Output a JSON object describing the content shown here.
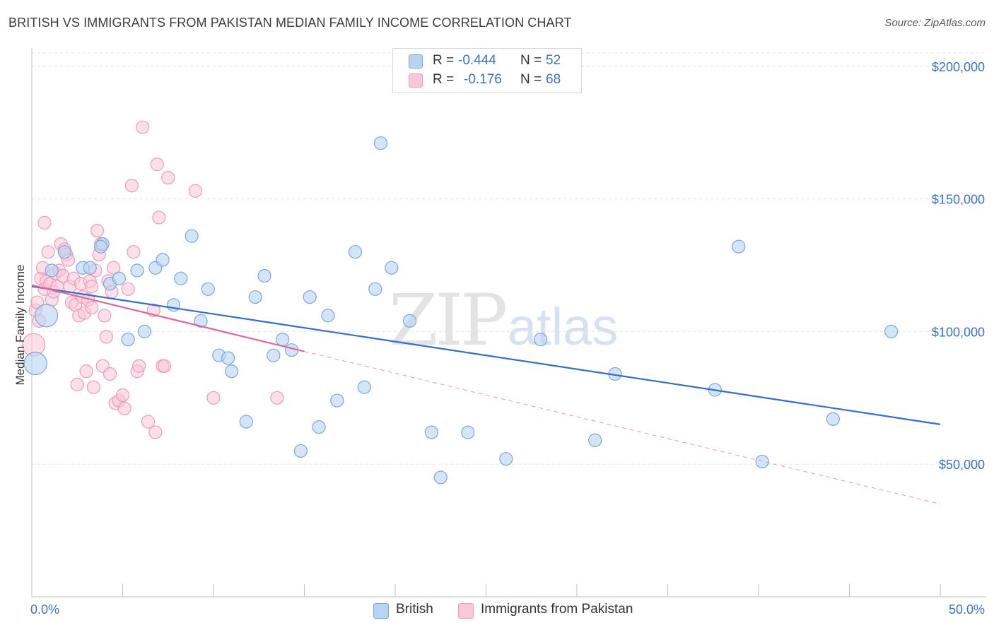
{
  "title": "BRITISH VS IMMIGRANTS FROM PAKISTAN MEDIAN FAMILY INCOME CORRELATION CHART",
  "source": "Source: ZipAtlas.com",
  "watermark": {
    "zip": "ZIP",
    "atlas": "atlas"
  },
  "legend": {
    "british": {
      "r_label": "R =",
      "r_value": "-0.444",
      "n_label": "N =",
      "n_value": "52"
    },
    "pakistan": {
      "r_label": "R =",
      "r_value": "-0.176",
      "n_label": "N =",
      "n_value": "68"
    }
  },
  "bottom_legend": {
    "british": "British",
    "pakistan": "Immigrants from Pakistan"
  },
  "colors": {
    "british_fill": "#b9d3f3",
    "british_stroke": "#7aa6df",
    "british_line": "#2f6fd0",
    "pakistan_fill": "#f9c7d7",
    "pakistan_stroke": "#ee9bb6",
    "pakistan_line": "#e0699a",
    "tick_text": "#3a72c8"
  },
  "chart_data": {
    "type": "scatter",
    "title": "BRITISH VS IMMIGRANTS FROM PAKISTAN MEDIAN FAMILY INCOME CORRELATION CHART",
    "xlabel": "",
    "ylabel": "Median Family Income",
    "xlim": [
      0,
      50
    ],
    "ylim": [
      0,
      205000
    ],
    "x_tick_labels": [
      "0.0%",
      "50.0%"
    ],
    "y_ticks": [
      50000,
      100000,
      150000,
      200000
    ],
    "y_tick_labels": [
      "$50,000",
      "$100,000",
      "$150,000",
      "$200,000"
    ],
    "grid": true,
    "legend_position": "top-center",
    "series": [
      {
        "name": "British",
        "r": -0.444,
        "n": 52,
        "trend": {
          "x": [
            0,
            50
          ],
          "y": [
            117000,
            65000
          ]
        },
        "points": [
          [
            0.2,
            88000,
            "large"
          ],
          [
            0.8,
            106000,
            "large"
          ],
          [
            1.8,
            130000
          ],
          [
            1.1,
            123000
          ],
          [
            2.8,
            124000
          ],
          [
            3.9,
            133000
          ],
          [
            3.2,
            124000
          ],
          [
            3.8,
            132000
          ],
          [
            4.3,
            118000
          ],
          [
            4.8,
            120000
          ],
          [
            5.3,
            97000
          ],
          [
            5.8,
            123000
          ],
          [
            6.2,
            100000
          ],
          [
            6.8,
            124000
          ],
          [
            7.2,
            127000
          ],
          [
            7.8,
            110000
          ],
          [
            8.2,
            120000
          ],
          [
            8.8,
            136000
          ],
          [
            9.3,
            104000
          ],
          [
            9.7,
            116000
          ],
          [
            10.3,
            91000
          ],
          [
            10.8,
            90000
          ],
          [
            11.0,
            85000
          ],
          [
            11.8,
            66000
          ],
          [
            12.3,
            113000
          ],
          [
            12.8,
            121000
          ],
          [
            13.3,
            91000
          ],
          [
            13.8,
            97000
          ],
          [
            14.3,
            93000
          ],
          [
            14.8,
            55000
          ],
          [
            15.3,
            113000
          ],
          [
            15.8,
            64000
          ],
          [
            16.3,
            106000
          ],
          [
            16.8,
            74000
          ],
          [
            17.8,
            130000
          ],
          [
            18.3,
            79000
          ],
          [
            18.9,
            116000
          ],
          [
            19.2,
            171000
          ],
          [
            19.8,
            124000
          ],
          [
            20.8,
            104000
          ],
          [
            22.0,
            62000
          ],
          [
            22.5,
            45000
          ],
          [
            24.0,
            62000
          ],
          [
            26.1,
            52000
          ],
          [
            28.0,
            97000
          ],
          [
            31.0,
            59000
          ],
          [
            32.1,
            84000
          ],
          [
            37.6,
            78000
          ],
          [
            38.9,
            132000
          ],
          [
            40.2,
            51000
          ],
          [
            44.1,
            67000
          ],
          [
            47.3,
            100000
          ]
        ]
      },
      {
        "name": "Immigrants from Pakistan",
        "r": -0.176,
        "n": 68,
        "trend": {
          "x": [
            0,
            15
          ],
          "y": [
            117500,
            92500
          ]
        },
        "trend_extended": {
          "x": [
            15,
            50
          ],
          "y": [
            92500,
            35000
          ]
        },
        "points": [
          [
            0.1,
            95000,
            "large"
          ],
          [
            0.2,
            108000
          ],
          [
            0.3,
            111000
          ],
          [
            0.4,
            104000
          ],
          [
            0.5,
            120000
          ],
          [
            0.6,
            124000
          ],
          [
            0.7,
            116000
          ],
          [
            0.7,
            141000
          ],
          [
            0.8,
            119000
          ],
          [
            0.9,
            130000
          ],
          [
            1.0,
            118000
          ],
          [
            1.1,
            112000
          ],
          [
            1.2,
            115000
          ],
          [
            1.3,
            122000
          ],
          [
            1.4,
            117000
          ],
          [
            1.5,
            123000
          ],
          [
            1.6,
            133000
          ],
          [
            1.7,
            121000
          ],
          [
            1.8,
            131000
          ],
          [
            1.9,
            129000
          ],
          [
            2.0,
            127000
          ],
          [
            2.1,
            117000
          ],
          [
            2.2,
            111000
          ],
          [
            2.3,
            120000
          ],
          [
            2.4,
            110000
          ],
          [
            2.5,
            80000
          ],
          [
            2.6,
            106000
          ],
          [
            2.7,
            118000
          ],
          [
            2.8,
            113000
          ],
          [
            2.9,
            107000
          ],
          [
            3.0,
            85000
          ],
          [
            3.1,
            112000
          ],
          [
            3.2,
            119000
          ],
          [
            3.3,
            109000
          ],
          [
            3.4,
            79000
          ],
          [
            3.5,
            123000
          ],
          [
            3.6,
            138000
          ],
          [
            3.7,
            129000
          ],
          [
            3.8,
            133000
          ],
          [
            3.9,
            87000
          ],
          [
            4.0,
            106000
          ],
          [
            4.1,
            98000
          ],
          [
            4.2,
            119000
          ],
          [
            4.3,
            84000
          ],
          [
            4.4,
            115000
          ],
          [
            4.6,
            73000
          ],
          [
            4.8,
            74000
          ],
          [
            5.1,
            71000
          ],
          [
            5.0,
            76000
          ],
          [
            5.5,
            155000
          ],
          [
            5.3,
            116000
          ],
          [
            5.6,
            130000
          ],
          [
            5.8,
            85000
          ],
          [
            5.9,
            87000
          ],
          [
            6.1,
            177000
          ],
          [
            6.4,
            66000
          ],
          [
            6.7,
            108000
          ],
          [
            6.8,
            62000
          ],
          [
            6.9,
            163000
          ],
          [
            7.2,
            87000
          ],
          [
            7.5,
            158000
          ],
          [
            7.0,
            143000
          ],
          [
            7.3,
            87000
          ],
          [
            9.0,
            153000
          ],
          [
            10.0,
            75000
          ],
          [
            13.5,
            75000
          ],
          [
            4.5,
            124000
          ],
          [
            3.3,
            117000
          ]
        ]
      }
    ]
  }
}
